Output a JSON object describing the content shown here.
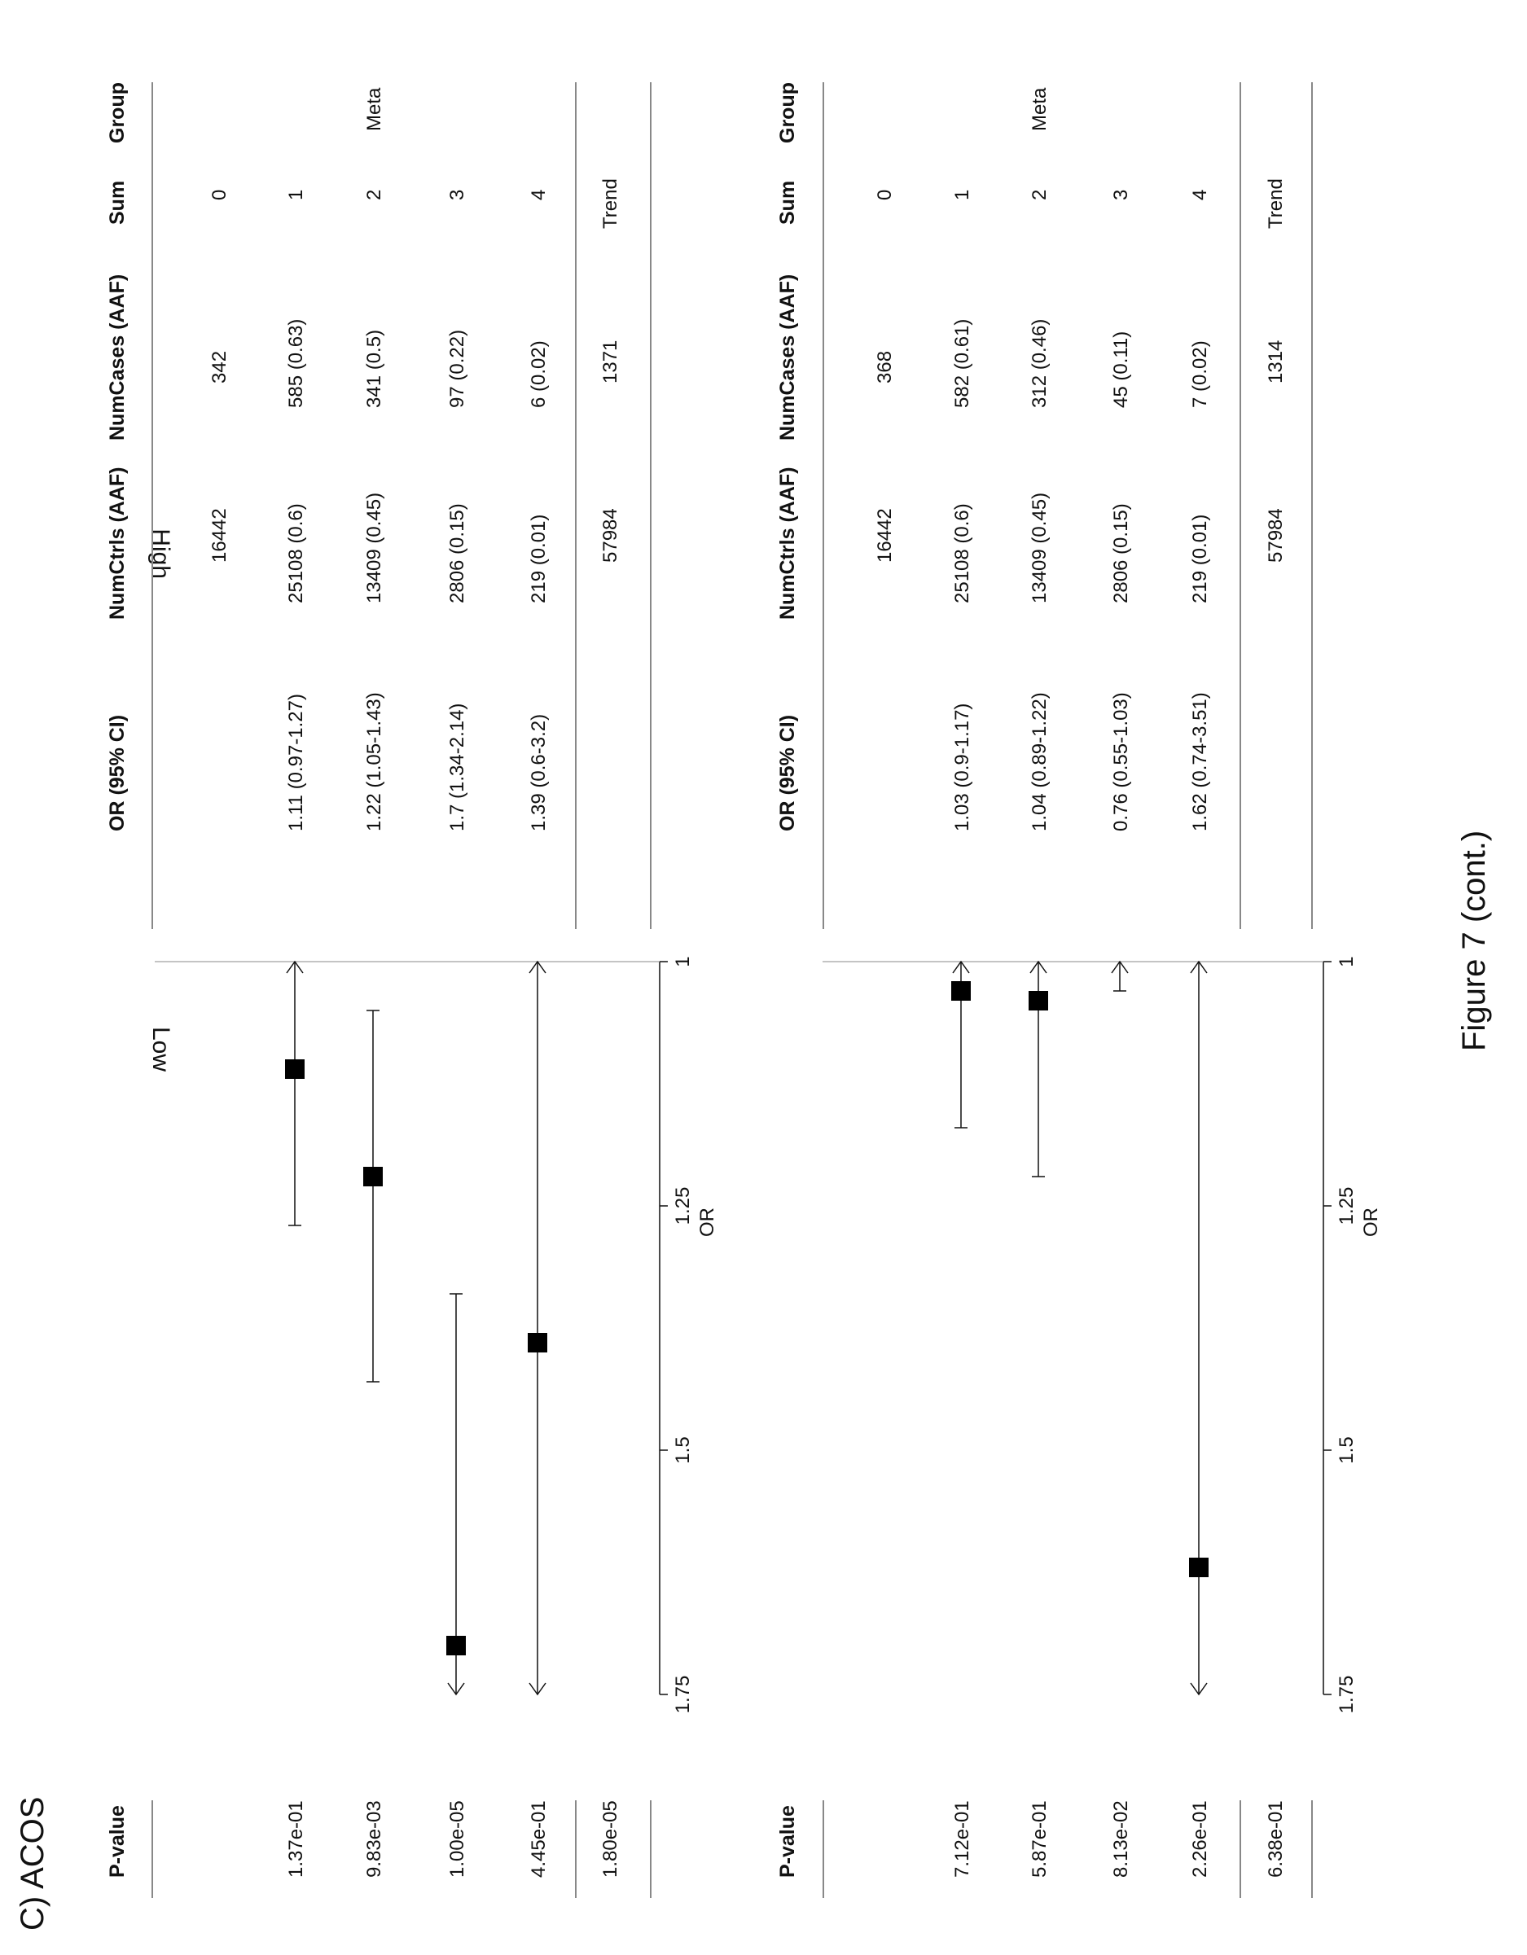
{
  "figure": {
    "panel_label": "C) ACOS",
    "caption": "Figure 7 (cont.)"
  },
  "table_headers": [
    "Group",
    "Sum",
    "NumCases (AAF)",
    "NumCtrls (AAF)",
    "OR (95% CI)",
    "P-value"
  ],
  "axis": {
    "label": "OR",
    "ticks": [
      "1",
      "1.25",
      "1.5",
      "1.75"
    ]
  },
  "colors": {
    "marker": "#000000",
    "line": "#111111",
    "rule": "#888888"
  },
  "panels": [
    {
      "side_label": "High",
      "rows": [
        {
          "group": "",
          "sum": "0",
          "cases": "342",
          "ctrls": "16442",
          "or_ci": "",
          "p": ""
        },
        {
          "group": "",
          "sum": "1",
          "cases": "585 (0.63)",
          "ctrls": "25108 (0.6)",
          "or_ci": "1.11 (0.97-1.27)",
          "p": "1.37e-01"
        },
        {
          "group": "Meta",
          "sum": "2",
          "cases": "341 (0.5)",
          "ctrls": "13409 (0.45)",
          "or_ci": "1.22 (1.05-1.43)",
          "p": "9.83e-03"
        },
        {
          "group": "",
          "sum": "3",
          "cases": "97 (0.22)",
          "ctrls": "2806 (0.15)",
          "or_ci": "1.7 (1.34-2.14)",
          "p": "1.00e-05"
        },
        {
          "group": "",
          "sum": "4",
          "cases": "6 (0.02)",
          "ctrls": "219 (0.01)",
          "or_ci": "1.39 (0.6-3.2)",
          "p": "4.45e-01"
        }
      ],
      "trend": {
        "label": "Trend",
        "cases": "1371",
        "ctrls": "57984",
        "p": "1.80e-05"
      }
    },
    {
      "side_label": "Low",
      "rows": [
        {
          "group": "",
          "sum": "0",
          "cases": "368",
          "ctrls": "16442",
          "or_ci": "",
          "p": ""
        },
        {
          "group": "",
          "sum": "1",
          "cases": "582 (0.61)",
          "ctrls": "25108 (0.6)",
          "or_ci": "1.03 (0.9-1.17)",
          "p": "7.12e-01"
        },
        {
          "group": "Meta",
          "sum": "2",
          "cases": "312 (0.46)",
          "ctrls": "13409 (0.45)",
          "or_ci": "1.04 (0.89-1.22)",
          "p": "5.87e-01"
        },
        {
          "group": "",
          "sum": "3",
          "cases": "45 (0.11)",
          "ctrls": "2806 (0.15)",
          "or_ci": "0.76 (0.55-1.03)",
          "p": "8.13e-02"
        },
        {
          "group": "",
          "sum": "4",
          "cases": "7 (0.02)",
          "ctrls": "219 (0.01)",
          "or_ci": "1.62 (0.74-3.51)",
          "p": "2.26e-01"
        }
      ],
      "trend": {
        "label": "Trend",
        "cases": "1314",
        "ctrls": "57984",
        "p": "6.38e-01"
      }
    }
  ],
  "chart_data": [
    {
      "type": "scatter",
      "title": "",
      "panel": "High",
      "xlabel": "OR",
      "xlim": [
        1,
        1.75
      ],
      "xticks": [
        1,
        1.25,
        1.5,
        1.75
      ],
      "categories": [
        "1",
        "2",
        "3",
        "4"
      ],
      "estimates": [
        1.11,
        1.22,
        1.7,
        1.39
      ],
      "ci_lower": [
        0.97,
        1.05,
        1.34,
        0.6
      ],
      "ci_upper": [
        1.27,
        1.43,
        2.14,
        3.2
      ]
    },
    {
      "type": "scatter",
      "title": "",
      "panel": "Low",
      "xlabel": "OR",
      "xlim": [
        1,
        1.75
      ],
      "xticks": [
        1,
        1.25,
        1.5,
        1.75
      ],
      "categories": [
        "1",
        "2",
        "3",
        "4"
      ],
      "estimates": [
        1.03,
        1.04,
        0.76,
        1.62
      ],
      "ci_lower": [
        0.9,
        0.89,
        0.55,
        0.74
      ],
      "ci_upper": [
        1.17,
        1.22,
        1.03,
        3.51
      ]
    }
  ]
}
